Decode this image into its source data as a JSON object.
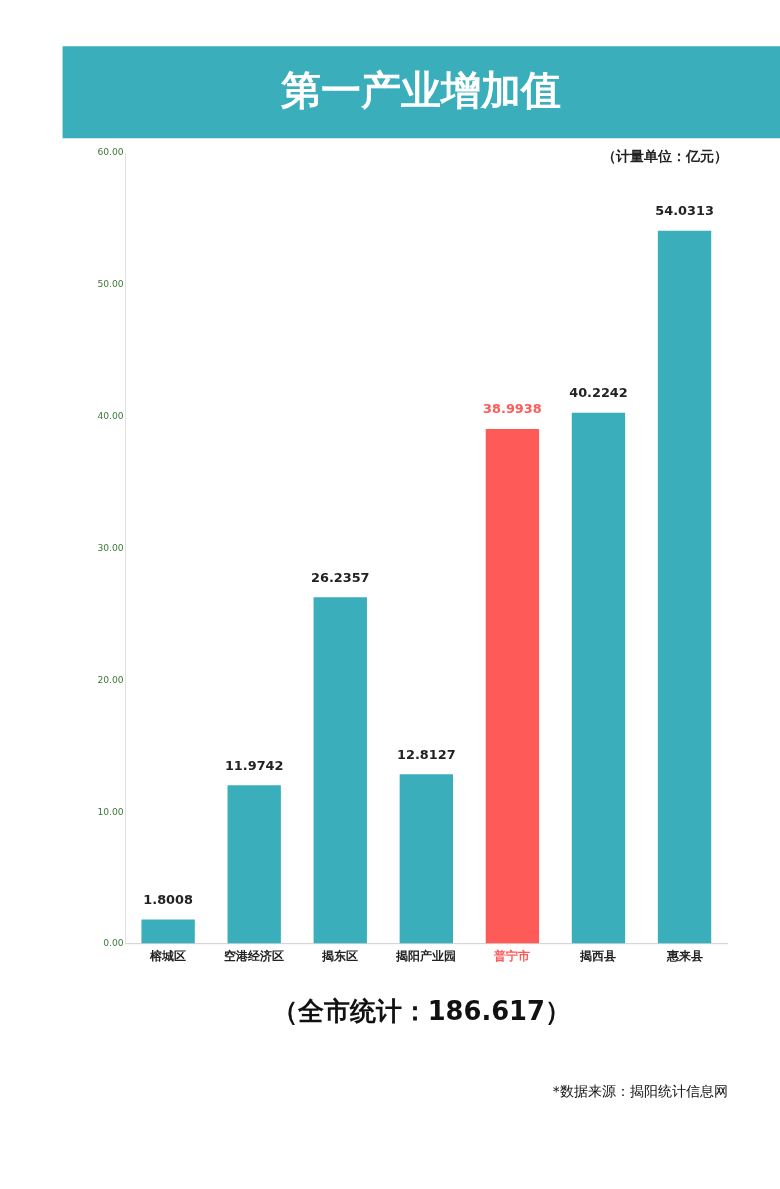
{
  "chart_data": {
    "type": "bar",
    "title": "第一产业增加值",
    "categories": [
      "榕城区",
      "空港经济区",
      "揭东区",
      "揭阳产业园",
      "普宁市",
      "揭西县",
      "惠来县"
    ],
    "values": [
      1.8008,
      11.9742,
      26.2357,
      12.8127,
      38.9938,
      40.2242,
      54.0313
    ],
    "colors": [
      "#3aafbb",
      "#3aafbb",
      "#3aafbb",
      "#3aafbb",
      "#fe5a58",
      "#3aafbb",
      "#3aafbb"
    ],
    "ylim": [
      0,
      60
    ],
    "yticks": [
      {
        "value": 0,
        "label": "0.00"
      },
      {
        "value": 10,
        "label": "10.00"
      },
      {
        "value": 20,
        "label": "20.00"
      },
      {
        "value": 30,
        "label": "30.00"
      },
      {
        "value": 40,
        "label": "40.00"
      },
      {
        "value": 50,
        "label": "50.00"
      },
      {
        "value": 60,
        "label": "60.00"
      }
    ],
    "data_labels": true,
    "grid": false,
    "annotations": [
      "（计量单位：亿元）",
      "（全市统计：186.617）",
      "*数据来源：揭阳统计信息网"
    ]
  }
}
